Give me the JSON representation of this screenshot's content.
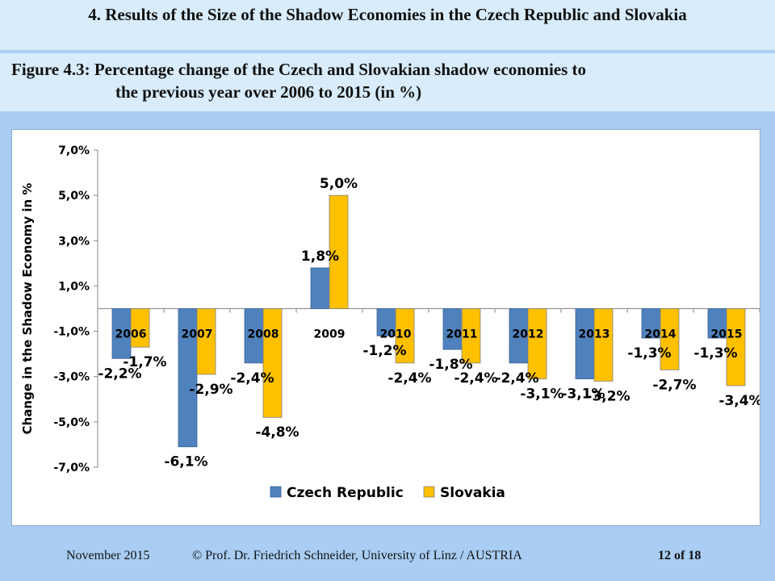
{
  "slide": {
    "title": "4. Results of the Size of the Shadow Economies in the Czech Republic and Slovakia",
    "caption_line1": "Figure 4.3: Percentage change of the Czech and Slovakian shadow economies to",
    "caption_line2": "the previous year over 2006 to 2015 (in %)"
  },
  "footer": {
    "date": "November 2015",
    "author": "© Prof. Dr. Friedrich Schneider, University of Linz / AUSTRIA",
    "page": "12 of 18"
  },
  "chart_data": {
    "type": "bar",
    "ylabel": "Change in the Shadow Economy in %",
    "xlabel": "",
    "ylim": [
      -7.0,
      7.0
    ],
    "yticks": [
      7.0,
      5.0,
      3.0,
      1.0,
      -1.0,
      -3.0,
      -5.0,
      -7.0
    ],
    "ytick_labels": [
      "7,0%",
      "5,0%",
      "3,0%",
      "1,0%",
      "-1,0%",
      "-3,0%",
      "-5,0%",
      "-7,0%"
    ],
    "categories": [
      "2006",
      "2007",
      "2008",
      "2009",
      "2010",
      "2011",
      "2012",
      "2013",
      "2014",
      "2015"
    ],
    "series": [
      {
        "name": "Czech Republic",
        "color": "#4f81bd",
        "values": [
          -2.2,
          -6.1,
          -2.4,
          1.8,
          -1.2,
          -1.8,
          -2.4,
          -3.1,
          -1.3,
          -1.3
        ],
        "labels": [
          "-2,2%",
          "-6,1%",
          "-2,4%",
          "1,8%",
          "-1,2%",
          "-1,8%",
          "-2,4%",
          "-3,1%",
          "-1,3%",
          "-1,3%"
        ]
      },
      {
        "name": "Slovakia",
        "color": "#ffc000",
        "values": [
          -1.7,
          -2.9,
          -4.8,
          5.0,
          -2.4,
          -2.4,
          -3.1,
          -3.2,
          -2.7,
          -3.4
        ],
        "labels": [
          "-1,7%",
          "-2,9%",
          "-4,8%",
          "5,0%",
          "-2,4%",
          "-2,4%",
          "-3,1%",
          "-3,2%",
          "-2,7%",
          "-3,4%"
        ]
      }
    ],
    "legend_position": "bottom",
    "grid": false
  }
}
